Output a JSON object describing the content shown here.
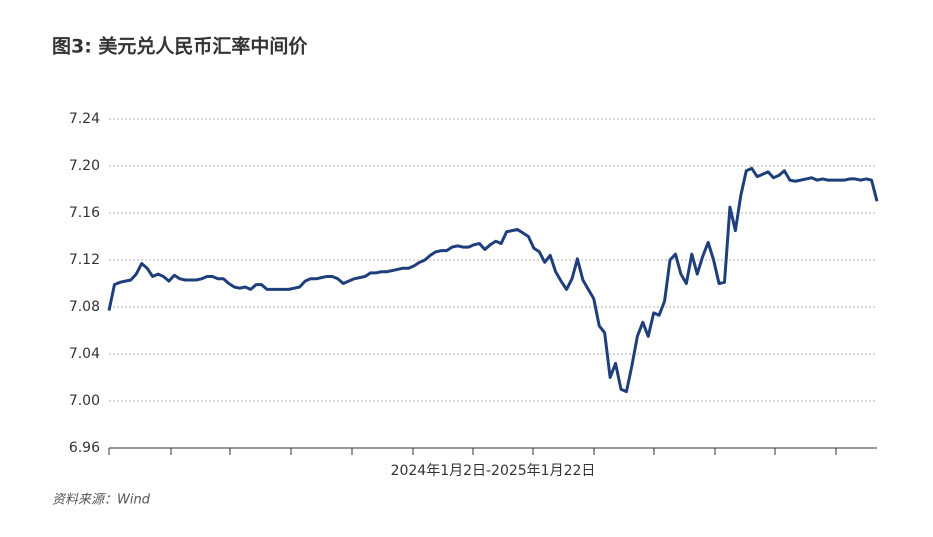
{
  "chart_data": {
    "type": "line",
    "title": "图3: 美元兑人民币汇率中间价",
    "xlabel": "2024年1月2日-2025年1月22日",
    "source": "资料来源：Wind",
    "color": "#1f3f7c",
    "grid": true,
    "ylim": [
      6.96,
      7.24
    ],
    "yticks": [
      {
        "value": 6.96,
        "label": "6.96"
      },
      {
        "value": 7.0,
        "label": "7.00"
      },
      {
        "value": 7.04,
        "label": "7.04"
      },
      {
        "value": 7.08,
        "label": "7.08"
      },
      {
        "value": 7.12,
        "label": "7.12"
      },
      {
        "value": 7.16,
        "label": "7.16"
      },
      {
        "value": 7.2,
        "label": "7.20"
      },
      {
        "value": 7.24,
        "label": "7.24"
      }
    ],
    "values": [
      7.077,
      7.099,
      7.101,
      7.102,
      7.103,
      7.108,
      7.117,
      7.113,
      7.106,
      7.108,
      7.106,
      7.102,
      7.107,
      7.104,
      7.103,
      7.103,
      7.103,
      7.104,
      7.106,
      7.106,
      7.104,
      7.104,
      7.1,
      7.097,
      7.096,
      7.097,
      7.095,
      7.099,
      7.099,
      7.095,
      7.095,
      7.095,
      7.095,
      7.095,
      7.096,
      7.097,
      7.102,
      7.104,
      7.104,
      7.105,
      7.106,
      7.106,
      7.104,
      7.1,
      7.102,
      7.104,
      7.105,
      7.106,
      7.109,
      7.109,
      7.11,
      7.11,
      7.111,
      7.112,
      7.113,
      7.113,
      7.115,
      7.118,
      7.12,
      7.124,
      7.127,
      7.128,
      7.128,
      7.131,
      7.132,
      7.131,
      7.131,
      7.133,
      7.134,
      7.129,
      7.133,
      7.136,
      7.134,
      7.144,
      7.145,
      7.146,
      7.143,
      7.14,
      7.13,
      7.127,
      7.118,
      7.124,
      7.11,
      7.102,
      7.095,
      7.104,
      7.121,
      7.103,
      7.095,
      7.087,
      7.064,
      7.058,
      7.02,
      7.032,
      7.01,
      7.008,
      7.03,
      7.055,
      7.067,
      7.055,
      7.075,
      7.073,
      7.085,
      7.12,
      7.125,
      7.108,
      7.1,
      7.125,
      7.108,
      7.123,
      7.135,
      7.12,
      7.1,
      7.101,
      7.165,
      7.145,
      7.175,
      7.196,
      7.198,
      7.191,
      7.193,
      7.195,
      7.19,
      7.192,
      7.196,
      7.188,
      7.187,
      7.188,
      7.189,
      7.19,
      7.188,
      7.189,
      7.188,
      7.188,
      7.188,
      7.188,
      7.189,
      7.189,
      7.188,
      7.189,
      7.188,
      7.17
    ]
  }
}
